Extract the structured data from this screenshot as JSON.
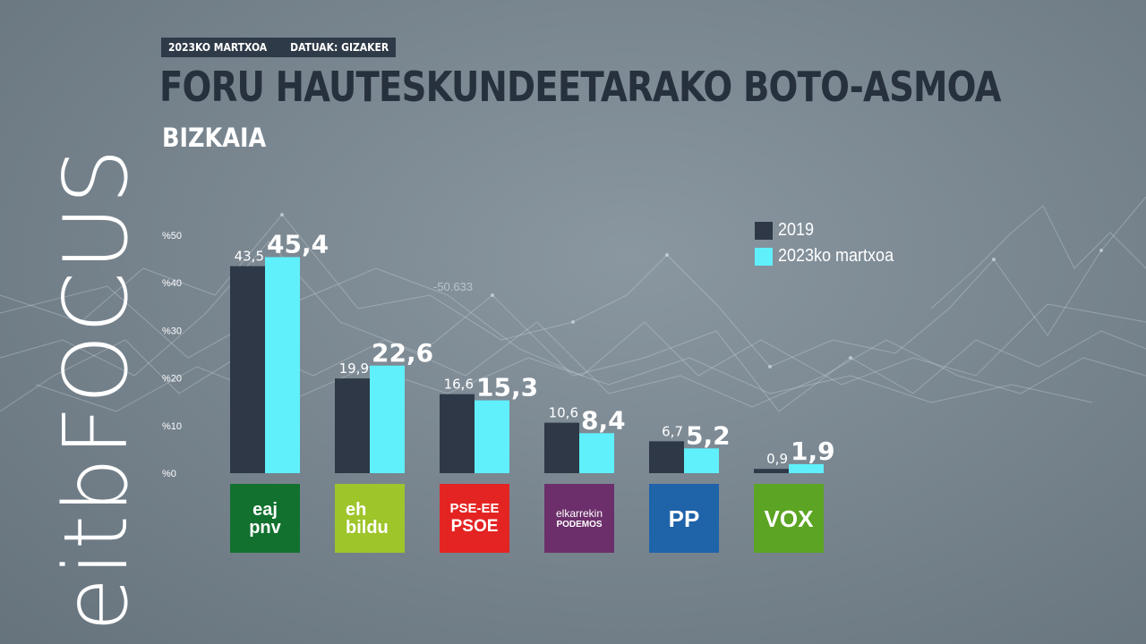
{
  "header": {
    "date": "2023KO MARTXOA",
    "source": "DATUAK: GIZAKER",
    "title": "FORU HAUTESKUNDEETARAKO BOTO-ASMOA",
    "subtitle": "BIZKAIA"
  },
  "brand": {
    "text": "eitbFOCUS"
  },
  "background_label": "-50.633",
  "colors": {
    "series_2019": "#2e3847",
    "series_2023": "#5ff0fb",
    "pnv": "#12712f",
    "bildu": "#9ec52a",
    "psoe": "#e42423",
    "podemos": "#6c2f6b",
    "pp": "#1f63a9",
    "vox": "#5ca423"
  },
  "parties": [
    {
      "id": "pnv",
      "lines": [
        "eaj",
        "pnv"
      ]
    },
    {
      "id": "bildu",
      "lines": [
        "eh",
        "bildu"
      ]
    },
    {
      "id": "psoe",
      "lines": [
        "PSE-EE",
        "PSOE"
      ]
    },
    {
      "id": "podemos",
      "lines": [
        "elkarrekin",
        "PODEMOS"
      ]
    },
    {
      "id": "pp",
      "lines": [
        "PP"
      ]
    },
    {
      "id": "vox",
      "lines": [
        "VOX"
      ]
    }
  ],
  "chart_data": {
    "type": "bar",
    "title": "FORU HAUTESKUNDEETARAKO BOTO-ASMOA",
    "subtitle": "BIZKAIA",
    "categories": [
      "EAJ-PNV",
      "EH Bildu",
      "PSE-EE PSOE",
      "Elkarrekin Podemos",
      "PP",
      "VOX"
    ],
    "series": [
      {
        "name": "2019",
        "values": [
          43.5,
          19.9,
          16.6,
          10.6,
          6.7,
          0.9
        ],
        "labels": [
          "43,5",
          "19,9",
          "16,6",
          "10,6",
          "6,7",
          "0,9"
        ]
      },
      {
        "name": "2023ko martxoa",
        "values": [
          45.4,
          22.6,
          15.3,
          8.4,
          5.2,
          1.9
        ],
        "labels": [
          "45,4",
          "22,6",
          "15,3",
          "8,4",
          "5,2",
          "1,9"
        ]
      }
    ],
    "y_ticks": [
      0,
      10,
      20,
      30,
      40,
      50
    ],
    "y_tick_labels": [
      "%0",
      "%10",
      "%20",
      "%30",
      "%40",
      "%50"
    ],
    "ylim": [
      0,
      50
    ],
    "legend": "top-right"
  }
}
